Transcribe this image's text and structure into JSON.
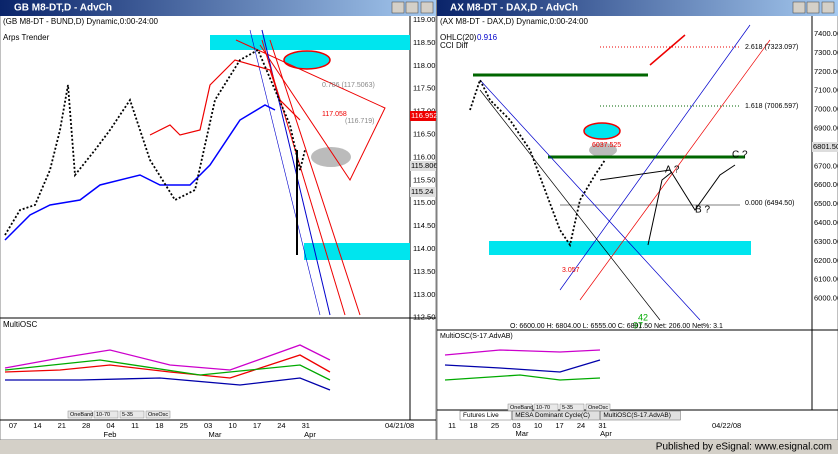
{
  "left": {
    "window_title": "GB M8-DT,D - AdvCh",
    "chart_label": "(GB M8-DT - BUND,D) Dynamic,0:00-24:00",
    "study": "Arps Trender",
    "price_axis": [
      "119.00",
      "118.50",
      "118.00",
      "117.50",
      "117.00",
      "116.50",
      "116.00",
      "115.50",
      "115.00",
      "114.50",
      "114.00",
      "113.50",
      "113.00",
      "112.50"
    ],
    "price_flags": [
      "116.9521",
      "115.8062",
      "115.24"
    ],
    "annotations": [
      "0.786 (117.5063)",
      "117.058",
      "(116.719)"
    ],
    "osc_label": "MultiOSC",
    "osc_buttons": [
      "OneBand",
      "10-70",
      "5-35",
      "OneOsc"
    ],
    "dates": [
      "07",
      "14",
      "21",
      "28",
      "04",
      "11",
      "18",
      "25",
      "03",
      "10",
      "17",
      "24",
      "31"
    ],
    "months": [
      "Feb",
      "Mar",
      "Apr"
    ],
    "end_date": "04/21/08"
  },
  "right": {
    "window_title": "AX M8-DT - DAX,D - AdvCh",
    "chart_label": "(AX M8-DT - DAX,D) Dynamic,0:00-24:00",
    "studies": [
      "OHLC(20)",
      "CCI Diff"
    ],
    "ohlc_value": "0.916",
    "price_axis": [
      "7400.00",
      "7300.00",
      "7200.00",
      "7100.00",
      "7000.00",
      "6900.00",
      "6800.00",
      "6700.00",
      "6600.00",
      "6500.00",
      "6400.00",
      "6300.00",
      "6200.00",
      "6100.00",
      "6000.00"
    ],
    "price_flag": "6801.50",
    "fib_labels": [
      "2.618 (7323.097)",
      "1.618 (7006.597)",
      "0.000 (6494.50)"
    ],
    "wave_labels": [
      "A ?",
      "B ?",
      "C ?"
    ],
    "level_label": "6037.525",
    "low_label": "3.057",
    "numbers": [
      "42",
      "97"
    ],
    "ohlc_line": "O: 6600.00  H: 6804.00  L: 6555.00  C: 6801.50  Net: 206.00  Net%: 3.1",
    "osc_label": "MultiOSC(S-17.AdvAB)",
    "tabs": [
      "Futures Live",
      "MESA Dominant Cycle(C)",
      "MultiOSC(S-17.AdvAB)"
    ],
    "osc_buttons": [
      "OneBand",
      "10-70",
      "5-35",
      "OneOsc"
    ],
    "dates": [
      "11",
      "18",
      "25",
      "03",
      "10",
      "17",
      "24",
      "31"
    ],
    "months": [
      "Mar",
      "Apr"
    ],
    "end_date": "04/22/08"
  },
  "footer": "Published by eSignal: www.esignal.com"
}
